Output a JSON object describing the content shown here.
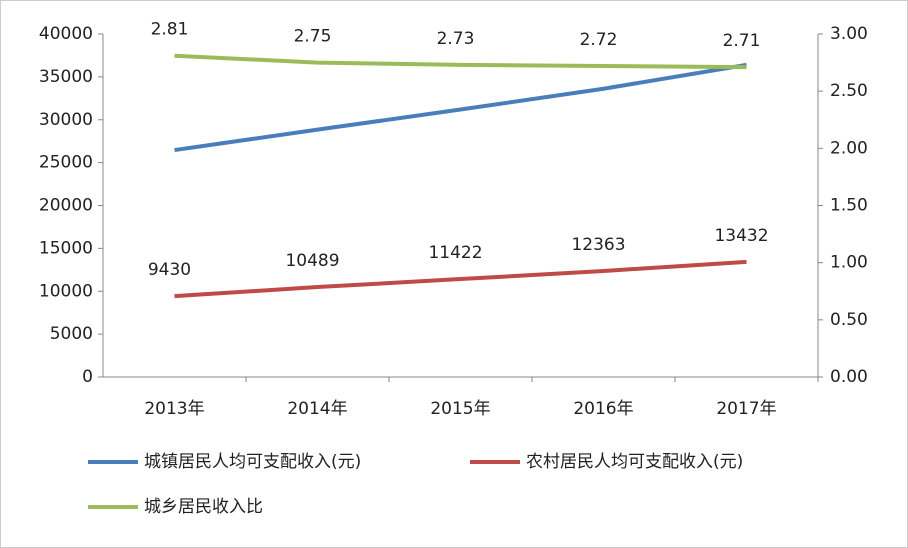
{
  "chart_data": {
    "type": "line",
    "categories": [
      "2013年",
      "2014年",
      "2015年",
      "2016年",
      "2017年"
    ],
    "series": [
      {
        "name": "城镇居民人均可支配收入(元)",
        "color": "#4a7ebb",
        "values": [
          26467,
          28844,
          31195,
          33616,
          36396
        ]
      },
      {
        "name": "农村居民人均可支配收入(元)",
        "color": "#be4b48",
        "values": [
          9430,
          10489,
          11422,
          12363,
          13432
        ],
        "show_labels": true
      },
      {
        "name": "城乡居民收入比",
        "color": "#9bbb59",
        "values": [
          2.81,
          2.75,
          2.73,
          2.72,
          2.71
        ],
        "axis": "y2",
        "show_labels": true
      }
    ],
    "ylim": [
      0,
      40000
    ],
    "yticks": [
      0,
      5000,
      10000,
      15000,
      20000,
      25000,
      30000,
      35000,
      40000
    ],
    "y2lim": [
      0,
      3
    ],
    "y2ticks": [
      {
        "value": 0,
        "label": "0.00"
      },
      {
        "value": 0.5,
        "label": "0.50"
      },
      {
        "value": 1,
        "label": "1.00"
      },
      {
        "value": 1.5,
        "label": "1.50"
      },
      {
        "value": 2,
        "label": "2.00"
      },
      {
        "value": 2.5,
        "label": "2.50"
      },
      {
        "value": 3,
        "label": "3.00"
      }
    ]
  }
}
